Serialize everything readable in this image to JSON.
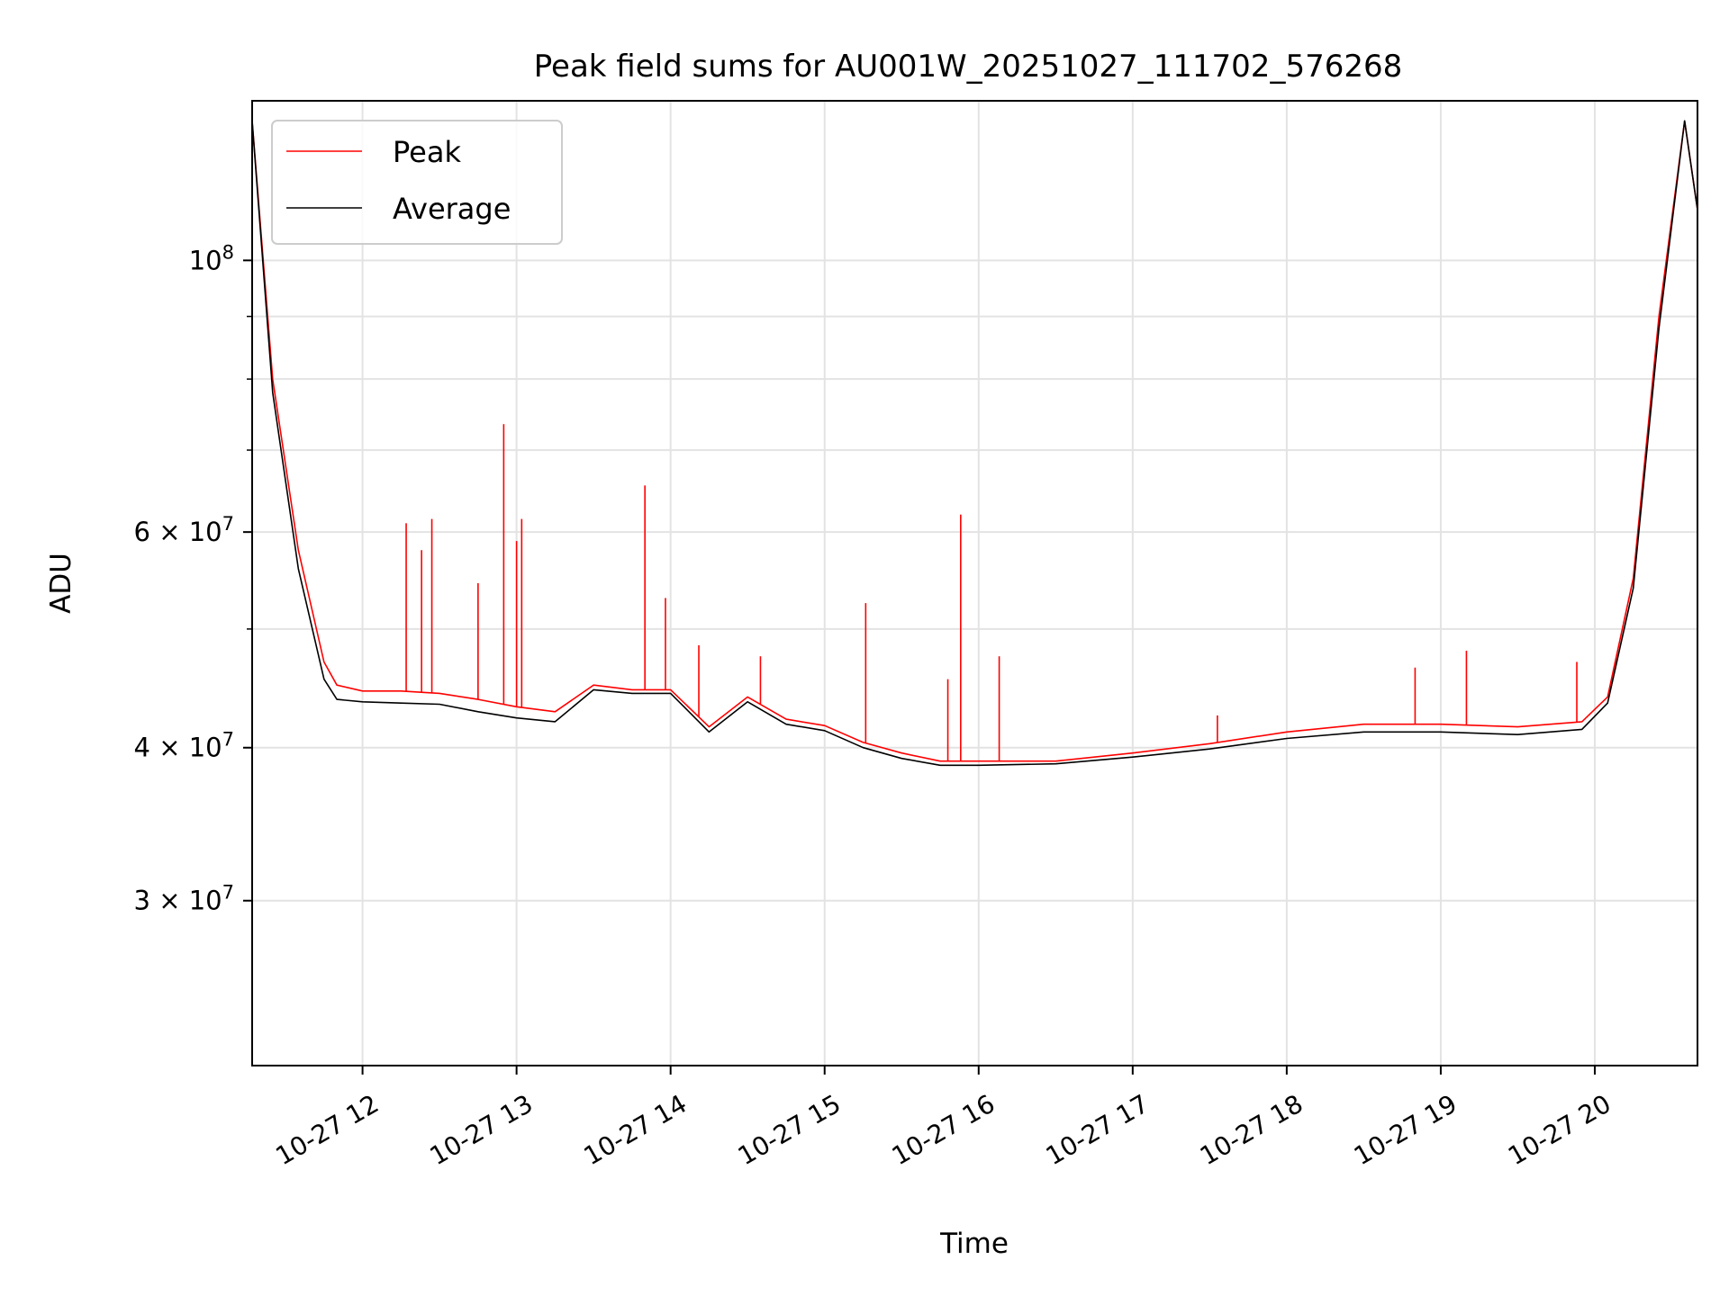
{
  "chart_data": {
    "type": "line",
    "title": "Peak field sums for AU001W_20251027_111702_576268",
    "xlabel": "Time",
    "ylabel": "ADU",
    "yscale": "log",
    "ylim": [
      22000000,
      135000000
    ],
    "xlim": [
      "2025-10-27 11:17",
      "2025-10-27 20:40"
    ],
    "grid": true,
    "legend": "top-left",
    "x_ticks": [
      {
        "value": "2025-10-27 12:00",
        "label": "10-27 12"
      },
      {
        "value": "2025-10-27 13:00",
        "label": "10-27 13"
      },
      {
        "value": "2025-10-27 14:00",
        "label": "10-27 14"
      },
      {
        "value": "2025-10-27 15:00",
        "label": "10-27 15"
      },
      {
        "value": "2025-10-27 16:00",
        "label": "10-27 16"
      },
      {
        "value": "2025-10-27 17:00",
        "label": "10-27 17"
      },
      {
        "value": "2025-10-27 18:00",
        "label": "10-27 18"
      },
      {
        "value": "2025-10-27 19:00",
        "label": "10-27 19"
      },
      {
        "value": "2025-10-27 20:00",
        "label": "10-27 20"
      }
    ],
    "y_ticks": [
      {
        "value": 100000000,
        "base": "10",
        "exp": "8"
      },
      {
        "value": 60000000,
        "base": "6 × 10",
        "exp": "7"
      },
      {
        "value": 40000000,
        "base": "4 × 10",
        "exp": "7"
      },
      {
        "value": 30000000,
        "base": "3 × 10",
        "exp": "7"
      }
    ],
    "y_minor_ticks": [
      50000000,
      70000000,
      80000000,
      90000000,
      200000000
    ],
    "series": [
      {
        "name": "Peak",
        "color": "#ff0000",
        "x": [
          "2025-10-27 11:17",
          "2025-10-27 11:25",
          "2025-10-27 11:35",
          "2025-10-27 11:45",
          "2025-10-27 11:50",
          "2025-10-27 12:00",
          "2025-10-27 12:15",
          "2025-10-27 12:30",
          "2025-10-27 12:45",
          "2025-10-27 13:00",
          "2025-10-27 13:15",
          "2025-10-27 13:30",
          "2025-10-27 13:45",
          "2025-10-27 14:00",
          "2025-10-27 14:15",
          "2025-10-27 14:30",
          "2025-10-27 14:45",
          "2025-10-27 15:00",
          "2025-10-27 15:15",
          "2025-10-27 15:30",
          "2025-10-27 15:45",
          "2025-10-27 16:00",
          "2025-10-27 16:30",
          "2025-10-27 17:00",
          "2025-10-27 17:30",
          "2025-10-27 18:00",
          "2025-10-27 18:30",
          "2025-10-27 19:00",
          "2025-10-27 19:30",
          "2025-10-27 19:55",
          "2025-10-27 20:05",
          "2025-10-27 20:15",
          "2025-10-27 20:25",
          "2025-10-27 20:35",
          "2025-10-27 20:40"
        ],
        "values": [
          130000000,
          80000000,
          58000000,
          47000000,
          45000000,
          44500000,
          44500000,
          44300000,
          43800000,
          43200000,
          42800000,
          45000000,
          44600000,
          44600000,
          41600000,
          44000000,
          42200000,
          41700000,
          40400000,
          39600000,
          39000000,
          39000000,
          39000000,
          39600000,
          40300000,
          41200000,
          41800000,
          41800000,
          41600000,
          42000000,
          44000000,
          55000000,
          90000000,
          130000000,
          110000000
        ]
      },
      {
        "name": "Average",
        "color": "#000000",
        "x": [
          "2025-10-27 11:17",
          "2025-10-27 11:25",
          "2025-10-27 11:35",
          "2025-10-27 11:45",
          "2025-10-27 11:50",
          "2025-10-27 12:00",
          "2025-10-27 12:15",
          "2025-10-27 12:30",
          "2025-10-27 12:45",
          "2025-10-27 13:00",
          "2025-10-27 13:15",
          "2025-10-27 13:30",
          "2025-10-27 13:45",
          "2025-10-27 14:00",
          "2025-10-27 14:15",
          "2025-10-27 14:30",
          "2025-10-27 14:45",
          "2025-10-27 15:00",
          "2025-10-27 15:15",
          "2025-10-27 15:30",
          "2025-10-27 15:45",
          "2025-10-27 16:00",
          "2025-10-27 16:30",
          "2025-10-27 17:00",
          "2025-10-27 17:30",
          "2025-10-27 18:00",
          "2025-10-27 18:30",
          "2025-10-27 19:00",
          "2025-10-27 19:30",
          "2025-10-27 19:55",
          "2025-10-27 20:05",
          "2025-10-27 20:15",
          "2025-10-27 20:25",
          "2025-10-27 20:35",
          "2025-10-27 20:40"
        ],
        "values": [
          130000000,
          78000000,
          56000000,
          45500000,
          43800000,
          43600000,
          43500000,
          43400000,
          42800000,
          42300000,
          42000000,
          44600000,
          44300000,
          44300000,
          41200000,
          43600000,
          41800000,
          41300000,
          40000000,
          39200000,
          38700000,
          38700000,
          38800000,
          39300000,
          39900000,
          40700000,
          41200000,
          41200000,
          41000000,
          41400000,
          43500000,
          54000000,
          88000000,
          130000000,
          110000000
        ]
      }
    ],
    "spikes": [
      {
        "x": "2025-10-27 12:17",
        "y": 61000000
      },
      {
        "x": "2025-10-27 12:23",
        "y": 58000000
      },
      {
        "x": "2025-10-27 12:27",
        "y": 61500000
      },
      {
        "x": "2025-10-27 12:45",
        "y": 54500000
      },
      {
        "x": "2025-10-27 12:55",
        "y": 73500000
      },
      {
        "x": "2025-10-27 13:00",
        "y": 59000000
      },
      {
        "x": "2025-10-27 13:02",
        "y": 61500000
      },
      {
        "x": "2025-10-27 13:50",
        "y": 65500000
      },
      {
        "x": "2025-10-27 13:58",
        "y": 53000000
      },
      {
        "x": "2025-10-27 14:11",
        "y": 48500000
      },
      {
        "x": "2025-10-27 14:35",
        "y": 47500000
      },
      {
        "x": "2025-10-27 15:16",
        "y": 52500000
      },
      {
        "x": "2025-10-27 15:48",
        "y": 45500000
      },
      {
        "x": "2025-10-27 15:53",
        "y": 62000000
      },
      {
        "x": "2025-10-27 16:08",
        "y": 47500000
      },
      {
        "x": "2025-10-27 17:33",
        "y": 42500000
      },
      {
        "x": "2025-10-27 18:50",
        "y": 46500000
      },
      {
        "x": "2025-10-27 19:10",
        "y": 48000000
      },
      {
        "x": "2025-10-27 19:53",
        "y": 47000000
      }
    ]
  }
}
